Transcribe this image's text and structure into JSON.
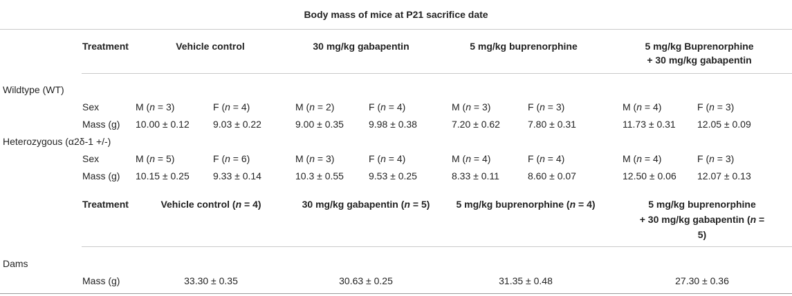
{
  "caption": "Body mass of mice at P21 sacrifice date",
  "pups": {
    "treatment_label": "Treatment",
    "treatments": [
      "Vehicle control",
      "30 mg/kg gabapentin",
      "5 mg/kg buprenorphine",
      "5 mg/kg Buprenorphine",
      "+ 30 mg/kg gabapentin"
    ],
    "groups": [
      {
        "label": "Wildtype (WT)",
        "sex_label": "Sex",
        "mass_label": "Mass (g)",
        "cells": [
          {
            "sex": "M (",
            "n": "n",
            "eq": " = 3)",
            "mass": "10.00 ± 0.12"
          },
          {
            "sex": "F (",
            "n": "n",
            "eq": " = 4)",
            "mass": "9.03 ± 0.22"
          },
          {
            "sex": "M (",
            "n": "n",
            "eq": " = 2)",
            "mass": "9.00 ± 0.35"
          },
          {
            "sex": "F (",
            "n": "n",
            "eq": " = 4)",
            "mass": "9.98 ± 0.38"
          },
          {
            "sex": "M (",
            "n": "n",
            "eq": " = 3)",
            "mass": "7.20 ± 0.62"
          },
          {
            "sex": "F (",
            "n": "n",
            "eq": " = 3)",
            "mass": "7.80 ± 0.31"
          },
          {
            "sex": "M (",
            "n": "n",
            "eq": " = 4)",
            "mass": "11.73 ± 0.31"
          },
          {
            "sex": "F (",
            "n": "n",
            "eq": " = 3)",
            "mass": "12.05 ± 0.09"
          }
        ]
      },
      {
        "label": "Heterozygous (α2δ-1 +/-)",
        "sex_label": "Sex",
        "mass_label": "Mass (g)",
        "cells": [
          {
            "sex": "M (",
            "n": "n",
            "eq": " = 5)",
            "mass": "10.15 ± 0.25"
          },
          {
            "sex": "F (",
            "n": "n",
            "eq": " = 6)",
            "mass": "9.33 ± 0.14"
          },
          {
            "sex": "M (",
            "n": "n",
            "eq": " = 3)",
            "mass": "10.3 ± 0.55"
          },
          {
            "sex": "F (",
            "n": "n",
            "eq": " = 4)",
            "mass": "9.53 ± 0.25"
          },
          {
            "sex": "M (",
            "n": "n",
            "eq": " = 4)",
            "mass": "8.33 ± 0.11"
          },
          {
            "sex": "F (",
            "n": "n",
            "eq": " = 4)",
            "mass": "8.60 ± 0.07"
          },
          {
            "sex": "M (",
            "n": "n",
            "eq": " = 4)",
            "mass": "12.50 ± 0.06"
          },
          {
            "sex": "F (",
            "n": "n",
            "eq": " = 3)",
            "mass": "12.07 ± 0.13"
          }
        ]
      }
    ]
  },
  "dams": {
    "treatment_label": "Treatment",
    "headers": [
      {
        "pre": "Vehicle control (",
        "n": "n",
        "post": " = 4)"
      },
      {
        "pre": "30 mg/kg gabapentin (",
        "n": "n",
        "post": " = 5)"
      },
      {
        "pre": "5 mg/kg buprenorphine (",
        "n": "n",
        "post": " = 4)"
      }
    ],
    "last_header": {
      "line1": "5 mg/kg buprenorphine",
      "line2_pre": "+ 30 mg/kg gabapentin (",
      "n": "n",
      "line2_post": " =",
      "line3": "5)"
    },
    "label": "Dams",
    "mass_label": "Mass (g)",
    "values": [
      "33.30 ± 0.35",
      "30.63 ± 0.25",
      "31.35 ± 0.48",
      "27.30 ± 0.36"
    ]
  }
}
